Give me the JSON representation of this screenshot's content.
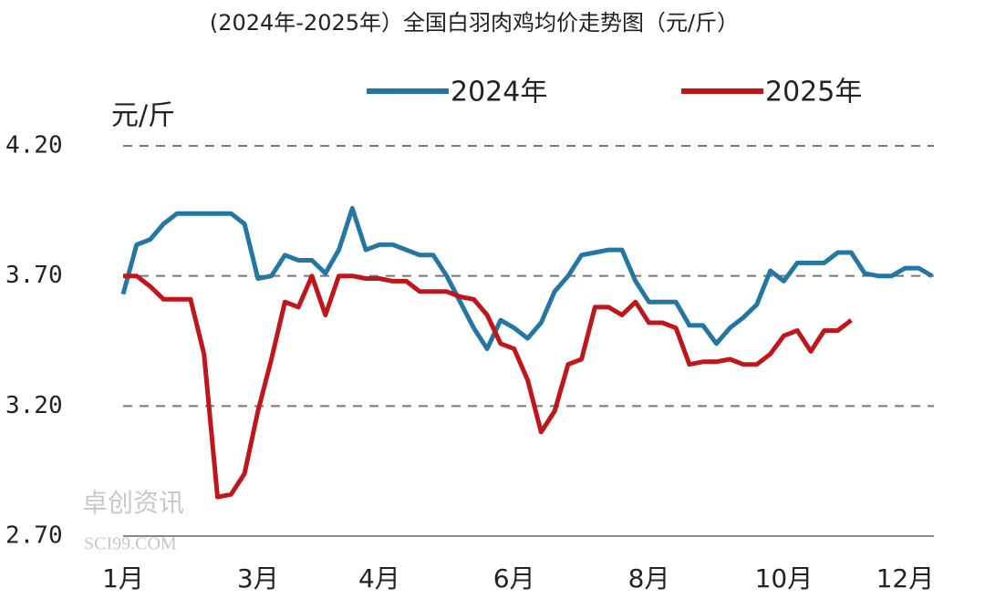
{
  "chart_data": {
    "type": "line",
    "title": "(2024年-2025年）全国白羽肉鸡均价走势图（元/斤）",
    "y_label": "元/斤",
    "watermark": [
      "卓创资讯",
      "SCI99.COM"
    ],
    "categories": [
      "1月",
      null,
      null,
      null,
      null,
      null,
      null,
      null,
      null,
      null,
      "3月",
      null,
      null,
      null,
      null,
      null,
      null,
      null,
      null,
      "4月",
      null,
      null,
      null,
      null,
      null,
      null,
      null,
      null,
      null,
      "6月",
      null,
      null,
      null,
      null,
      null,
      null,
      null,
      null,
      null,
      "8月",
      null,
      null,
      null,
      null,
      null,
      null,
      null,
      null,
      null,
      "10月",
      null,
      null,
      null,
      null,
      null,
      null,
      null,
      null,
      "12月",
      null,
      null
    ],
    "series": [
      {
        "name": "2024年",
        "color": "#2477a3",
        "values": [
          3.63,
          3.82,
          3.84,
          3.9,
          3.94,
          3.94,
          3.94,
          3.94,
          3.94,
          3.9,
          3.69,
          3.7,
          3.78,
          3.76,
          3.76,
          3.71,
          3.8,
          3.96,
          3.8,
          3.82,
          3.82,
          3.8,
          3.78,
          3.78,
          3.7,
          3.6,
          3.5,
          3.42,
          3.53,
          3.5,
          3.46,
          3.52,
          3.64,
          3.7,
          3.78,
          3.79,
          3.8,
          3.8,
          3.68,
          3.6,
          3.6,
          3.6,
          3.51,
          3.51,
          3.44,
          3.5,
          3.54,
          3.59,
          3.72,
          3.68,
          3.75,
          3.75,
          3.75,
          3.79,
          3.79,
          3.71,
          3.7,
          3.7,
          3.73,
          3.73,
          3.7
        ]
      },
      {
        "name": "2025年",
        "color": "#c0161b",
        "values": [
          3.7,
          3.7,
          3.66,
          3.61,
          3.61,
          3.61,
          3.4,
          2.85,
          2.86,
          2.94,
          3.18,
          3.38,
          3.6,
          3.58,
          3.7,
          3.55,
          3.7,
          3.7,
          3.69,
          3.69,
          3.68,
          3.68,
          3.64,
          3.64,
          3.64,
          3.62,
          3.61,
          3.55,
          3.44,
          3.42,
          3.3,
          3.1,
          3.18,
          3.36,
          3.38,
          3.58,
          3.58,
          3.55,
          3.6,
          3.52,
          3.52,
          3.5,
          3.36,
          3.37,
          3.37,
          3.38,
          3.36,
          3.36,
          3.4,
          3.47,
          3.49,
          3.41,
          3.49,
          3.49,
          3.53,
          null,
          null,
          null,
          null,
          null,
          null
        ]
      }
    ],
    "ylim": [
      2.7,
      4.2
    ],
    "yticks": [
      {
        "value": 2.7,
        "label": "2.70"
      },
      {
        "value": 3.2,
        "label": "3.20"
      },
      {
        "value": 3.7,
        "label": "3.70"
      },
      {
        "value": 4.2,
        "label": "4.20"
      }
    ],
    "grid": true,
    "legend": "top"
  }
}
